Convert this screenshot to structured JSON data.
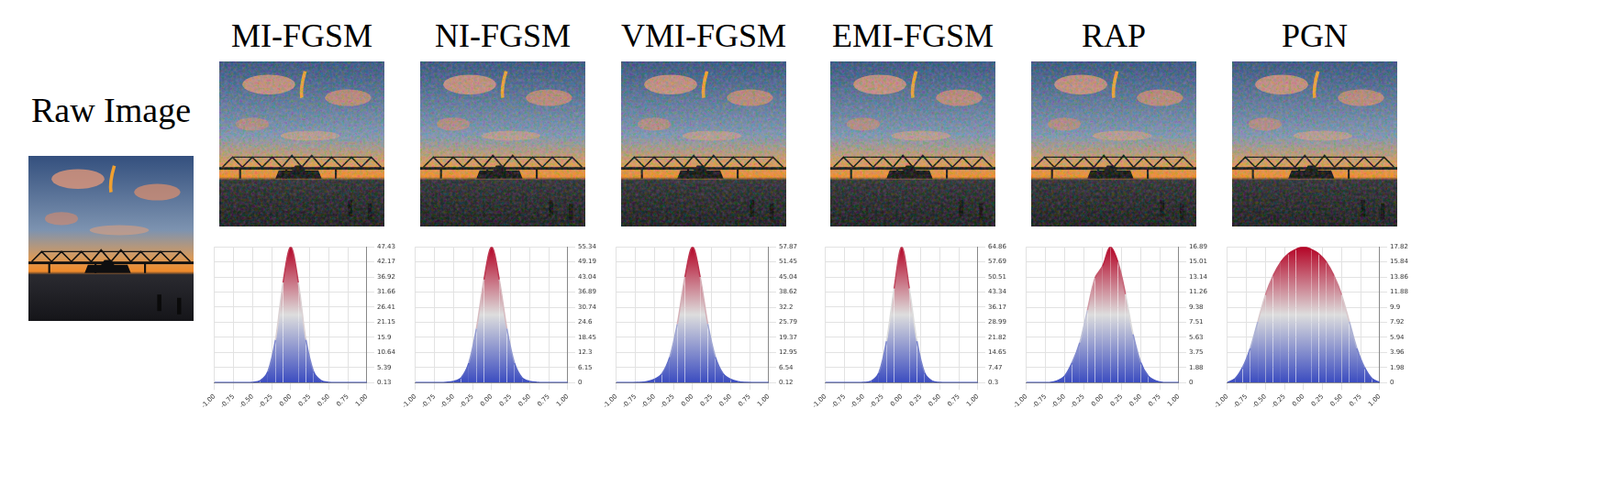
{
  "raw_image_label": "Raw Image",
  "chart_data": [
    {
      "type": "line",
      "title": "MI-FGSM",
      "x": [
        -1,
        -0.9,
        -0.8,
        -0.7,
        -0.6,
        -0.5,
        -0.4,
        -0.3,
        -0.2,
        -0.1,
        0,
        0.1,
        0.2,
        0.3,
        0.4,
        0.5,
        0.6,
        0.7,
        0.8,
        0.9,
        1
      ],
      "values": [
        0.13,
        0.13,
        0.13,
        0.13,
        0.13,
        0.2,
        0.8,
        4,
        15,
        35,
        47.43,
        35,
        15,
        4,
        0.8,
        0.2,
        0.13,
        0.13,
        0.13,
        0.13,
        0.13
      ],
      "xlim": [
        -1,
        1
      ],
      "xticks": [
        {
          "value": -1,
          "label": "-1.00"
        },
        {
          "value": -0.75,
          "label": "-0.75"
        },
        {
          "value": -0.5,
          "label": "-0.50"
        },
        {
          "value": -0.25,
          "label": "-0.25"
        },
        {
          "value": 0,
          "label": "0.00"
        },
        {
          "value": 0.25,
          "label": "0.25"
        },
        {
          "value": 0.5,
          "label": "0.50"
        },
        {
          "value": 0.75,
          "label": "0.75"
        },
        {
          "value": 1,
          "label": "1.00"
        }
      ],
      "ylim": [
        0.13,
        47.43
      ],
      "yticks": [
        0.13,
        5.39,
        10.64,
        15.9,
        21.15,
        26.41,
        31.66,
        36.92,
        42.17,
        47.43
      ],
      "grid": true
    },
    {
      "type": "line",
      "title": "NI-FGSM",
      "x": [
        -1,
        -0.9,
        -0.8,
        -0.7,
        -0.6,
        -0.5,
        -0.4,
        -0.3,
        -0.2,
        -0.1,
        0,
        0.1,
        0.2,
        0.3,
        0.4,
        0.5,
        0.6,
        0.7,
        0.8,
        0.9,
        1
      ],
      "values": [
        0,
        0,
        0,
        0,
        0.1,
        0.5,
        2,
        8,
        22,
        42,
        55.34,
        42,
        22,
        8,
        2,
        0.5,
        0.1,
        0,
        0,
        0,
        0
      ],
      "xlim": [
        -1,
        1
      ],
      "xticks": [
        {
          "value": -1,
          "label": "-1.00"
        },
        {
          "value": -0.75,
          "label": "-0.75"
        },
        {
          "value": -0.5,
          "label": "-0.50"
        },
        {
          "value": -0.25,
          "label": "-0.25"
        },
        {
          "value": 0,
          "label": "0.00"
        },
        {
          "value": 0.25,
          "label": "0.25"
        },
        {
          "value": 0.5,
          "label": "0.50"
        },
        {
          "value": 0.75,
          "label": "0.75"
        },
        {
          "value": 1,
          "label": "1.00"
        }
      ],
      "ylim": [
        0,
        55.34
      ],
      "yticks": [
        0,
        6.15,
        12.3,
        18.45,
        24.6,
        30.74,
        36.89,
        43.04,
        49.19,
        55.34
      ],
      "grid": true
    },
    {
      "type": "line",
      "title": "VMI-FGSM",
      "x": [
        -1,
        -0.9,
        -0.8,
        -0.7,
        -0.6,
        -0.5,
        -0.4,
        -0.3,
        -0.2,
        -0.1,
        0,
        0.1,
        0.2,
        0.3,
        0.4,
        0.5,
        0.6,
        0.7,
        0.8,
        0.9,
        1
      ],
      "values": [
        0.12,
        0.12,
        0.12,
        0.2,
        0.5,
        1.5,
        4,
        11,
        25,
        45,
        57.87,
        45,
        25,
        11,
        4,
        1.5,
        0.5,
        0.2,
        0.12,
        0.12,
        0.12
      ],
      "xlim": [
        -1,
        1
      ],
      "xticks": [
        {
          "value": -1,
          "label": "-1.00"
        },
        {
          "value": -0.75,
          "label": "-0.75"
        },
        {
          "value": -0.5,
          "label": "-0.50"
        },
        {
          "value": -0.25,
          "label": "-0.25"
        },
        {
          "value": 0,
          "label": "0.00"
        },
        {
          "value": 0.25,
          "label": "0.25"
        },
        {
          "value": 0.5,
          "label": "0.50"
        },
        {
          "value": 0.75,
          "label": "0.75"
        },
        {
          "value": 1,
          "label": "1.00"
        }
      ],
      "ylim": [
        0.12,
        57.87
      ],
      "yticks": [
        0.12,
        6.54,
        12.95,
        19.37,
        25.79,
        32.2,
        38.62,
        45.04,
        51.45,
        57.87
      ],
      "grid": true
    },
    {
      "type": "line",
      "title": "EMI-FGSM",
      "x": [
        -1,
        -0.9,
        -0.8,
        -0.7,
        -0.6,
        -0.5,
        -0.4,
        -0.3,
        -0.2,
        -0.1,
        0,
        0.1,
        0.2,
        0.3,
        0.4,
        0.5,
        0.6,
        0.7,
        0.8,
        0.9,
        1
      ],
      "values": [
        0.3,
        0.3,
        0.3,
        0.3,
        0.3,
        0.4,
        1,
        5,
        20,
        45,
        64.86,
        45,
        20,
        5,
        1,
        0.4,
        0.3,
        0.3,
        0.3,
        0.3,
        0.3
      ],
      "xlim": [
        -1,
        1
      ],
      "xticks": [
        {
          "value": -1,
          "label": "-1.00"
        },
        {
          "value": -0.75,
          "label": "-0.75"
        },
        {
          "value": -0.5,
          "label": "-0.50"
        },
        {
          "value": -0.25,
          "label": "-0.25"
        },
        {
          "value": 0,
          "label": "0.00"
        },
        {
          "value": 0.25,
          "label": "0.25"
        },
        {
          "value": 0.5,
          "label": "0.50"
        },
        {
          "value": 0.75,
          "label": "0.75"
        },
        {
          "value": 1,
          "label": "1.00"
        }
      ],
      "ylim": [
        0.3,
        64.86
      ],
      "yticks": [
        0.3,
        7.47,
        14.65,
        21.82,
        28.99,
        36.17,
        43.34,
        50.51,
        57.69,
        64.86
      ],
      "grid": true
    },
    {
      "type": "line",
      "title": "RAP",
      "x": [
        -1,
        -0.9,
        -0.8,
        -0.7,
        -0.6,
        -0.5,
        -0.4,
        -0.3,
        -0.2,
        -0.1,
        0,
        0.1,
        0.2,
        0.3,
        0.4,
        0.5,
        0.6,
        0.7,
        0.8,
        0.9,
        1
      ],
      "values": [
        0,
        0,
        0,
        0,
        0.2,
        0.8,
        2.5,
        5,
        9,
        13,
        14.5,
        16.89,
        15,
        11,
        6,
        2.5,
        0.8,
        0.2,
        0,
        0,
        0
      ],
      "xlim": [
        -1,
        1
      ],
      "xticks": [
        {
          "value": -1,
          "label": "-1.00"
        },
        {
          "value": -0.75,
          "label": "-0.75"
        },
        {
          "value": -0.5,
          "label": "-0.50"
        },
        {
          "value": -0.25,
          "label": "-0.25"
        },
        {
          "value": 0,
          "label": "0.00"
        },
        {
          "value": 0.25,
          "label": "0.25"
        },
        {
          "value": 0.5,
          "label": "0.50"
        },
        {
          "value": 0.75,
          "label": "0.75"
        },
        {
          "value": 1,
          "label": "1.00"
        }
      ],
      "ylim": [
        0,
        16.89
      ],
      "yticks": [
        0,
        1.88,
        3.75,
        5.63,
        7.51,
        9.38,
        11.26,
        13.14,
        15.01,
        16.89
      ],
      "grid": true
    },
    {
      "type": "line",
      "title": "PGN",
      "x": [
        -1,
        -0.9,
        -0.8,
        -0.7,
        -0.6,
        -0.5,
        -0.4,
        -0.3,
        -0.2,
        -0.1,
        0,
        0.1,
        0.2,
        0.3,
        0.4,
        0.5,
        0.6,
        0.7,
        0.8,
        0.9,
        1
      ],
      "values": [
        0,
        0.5,
        2,
        4.5,
        8,
        11.5,
        14,
        15.8,
        16.9,
        17.5,
        17.82,
        17.5,
        16.9,
        15.8,
        14,
        11.5,
        8,
        4.5,
        2,
        0.5,
        0
      ],
      "xlim": [
        -1,
        1
      ],
      "xticks": [
        {
          "value": -1,
          "label": "-1.00"
        },
        {
          "value": -0.75,
          "label": "-0.75"
        },
        {
          "value": -0.5,
          "label": "-0.50"
        },
        {
          "value": -0.25,
          "label": "-0.25"
        },
        {
          "value": 0,
          "label": "0.00"
        },
        {
          "value": 0.25,
          "label": "0.25"
        },
        {
          "value": 0.5,
          "label": "0.50"
        },
        {
          "value": 0.75,
          "label": "0.75"
        },
        {
          "value": 1,
          "label": "1.00"
        }
      ],
      "ylim": [
        0,
        17.82
      ],
      "yticks": [
        0,
        1.98,
        3.96,
        5.94,
        7.92,
        9.9,
        11.88,
        13.86,
        15.84,
        17.82
      ],
      "grid": true
    }
  ]
}
